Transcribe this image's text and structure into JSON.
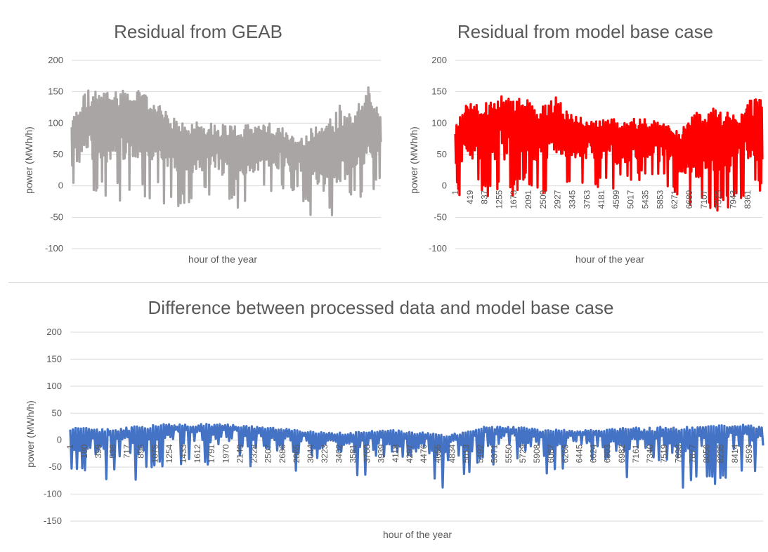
{
  "chart_data": [
    {
      "id": "chart1",
      "type": "line",
      "title": "Residual from GEAB",
      "xlabel": "hour of the year",
      "ylabel": "power (MWh/h)",
      "ylim": [
        -100,
        200
      ],
      "yticks": [
        -100,
        -50,
        0,
        50,
        100,
        150,
        200
      ],
      "xlim": [
        1,
        8760
      ],
      "xticks": [],
      "grid": true,
      "legend": "none",
      "color": "#a9a5a4",
      "series": [
        {
          "x": [
            1,
            400,
            800,
            1200,
            1600,
            2000,
            2400,
            2800,
            3200,
            3600,
            4000,
            4400,
            4800,
            5200,
            5600,
            6000,
            6400,
            6800,
            7200,
            7600,
            8000,
            8400,
            8760
          ],
          "top": [
            105,
            155,
            150,
            155,
            155,
            150,
            135,
            110,
            100,
            105,
            100,
            100,
            95,
            100,
            100,
            95,
            70,
            95,
            100,
            130,
            120,
            160,
            115
          ],
          "bottom": [
            -20,
            -25,
            -25,
            -30,
            -25,
            -20,
            -25,
            -40,
            -30,
            -20,
            -25,
            -35,
            -40,
            -10,
            -10,
            -15,
            -10,
            -50,
            -60,
            -40,
            -35,
            -20,
            -10
          ],
          "mean": [
            75,
            80,
            90,
            95,
            100,
            95,
            85,
            70,
            55,
            60,
            60,
            55,
            50,
            50,
            55,
            55,
            45,
            35,
            30,
            40,
            60,
            80,
            80
          ]
        }
      ]
    },
    {
      "id": "chart2",
      "type": "line",
      "title": "Residual from model base case",
      "xlabel": "hour of the year",
      "ylabel": "power (MWh/h)",
      "ylim": [
        -100,
        200
      ],
      "yticks": [
        -100,
        -50,
        0,
        50,
        100,
        150,
        200
      ],
      "xlim": [
        1,
        8760
      ],
      "xticks": [
        "1",
        "419",
        "837",
        "1255",
        "1673",
        "2091",
        "2509",
        "2927",
        "3345",
        "3763",
        "4181",
        "4599",
        "5017",
        "5435",
        "5853",
        "6271",
        "6689",
        "7107",
        "7525",
        "7943",
        "8361"
      ],
      "grid": true,
      "legend": "none",
      "color": "#ff0000",
      "series": [
        {
          "x": [
            1,
            400,
            800,
            1200,
            1600,
            2000,
            2400,
            2800,
            3200,
            3600,
            4000,
            4400,
            4800,
            5200,
            5600,
            6000,
            6400,
            6800,
            7200,
            7600,
            8000,
            8400,
            8760
          ],
          "top": [
            95,
            140,
            130,
            145,
            140,
            140,
            120,
            150,
            120,
            110,
            105,
            110,
            100,
            110,
            105,
            100,
            85,
            120,
            125,
            120,
            115,
            140,
            145
          ],
          "bottom": [
            -20,
            -15,
            -15,
            -25,
            -20,
            10,
            -20,
            -5,
            0,
            5,
            0,
            -10,
            0,
            10,
            5,
            0,
            -25,
            -40,
            -45,
            -45,
            -30,
            -10,
            -10
          ],
          "mean": [
            70,
            80,
            85,
            90,
            90,
            90,
            80,
            85,
            75,
            75,
            70,
            70,
            65,
            70,
            70,
            65,
            55,
            50,
            50,
            60,
            65,
            80,
            85
          ]
        }
      ]
    },
    {
      "id": "chart3",
      "type": "line",
      "title": "Difference between processed data and model base case",
      "xlabel": "hour of the year",
      "ylabel": "power (MWh/h)",
      "ylim": [
        -150,
        200
      ],
      "yticks": [
        -150,
        -100,
        -50,
        0,
        50,
        100,
        150,
        200
      ],
      "xlim": [
        1,
        8760
      ],
      "xticks": [
        "1",
        "180",
        "359",
        "538",
        "717",
        "896",
        "1075",
        "1254",
        "1433",
        "1612",
        "1791",
        "1970",
        "2149",
        "2328",
        "2507",
        "2686",
        "2865",
        "3044",
        "3223",
        "3402",
        "3581",
        "3760",
        "3939",
        "4118",
        "4297",
        "4476",
        "4655",
        "4834",
        "5013",
        "5192",
        "5371",
        "5550",
        "5729",
        "5908",
        "6087",
        "6266",
        "6445",
        "6624",
        "6803",
        "6982",
        "7161",
        "7340",
        "7519",
        "7698",
        "7877",
        "8056",
        "8235",
        "8414",
        "8593"
      ],
      "grid": true,
      "legend": "none",
      "color": "#4472c4",
      "series": [
        {
          "x": [
            1,
            400,
            800,
            1200,
            1600,
            2000,
            2400,
            2800,
            3200,
            3600,
            4000,
            4400,
            4800,
            5200,
            5600,
            6000,
            6400,
            6800,
            7200,
            7600,
            8000,
            8400,
            8760
          ],
          "top": [
            25,
            20,
            25,
            30,
            30,
            30,
            25,
            20,
            15,
            15,
            20,
            15,
            10,
            25,
            25,
            20,
            20,
            20,
            25,
            25,
            25,
            30,
            25
          ],
          "bottom": [
            -60,
            -80,
            -80,
            -60,
            -50,
            -40,
            -55,
            -60,
            -100,
            -90,
            -80,
            -80,
            -110,
            -50,
            -50,
            -80,
            -55,
            -40,
            -120,
            -90,
            -100,
            -60,
            -60
          ],
          "mean": [
            15,
            10,
            10,
            20,
            20,
            20,
            15,
            10,
            5,
            5,
            10,
            5,
            0,
            15,
            15,
            10,
            10,
            10,
            5,
            10,
            15,
            20,
            15
          ]
        }
      ]
    }
  ]
}
